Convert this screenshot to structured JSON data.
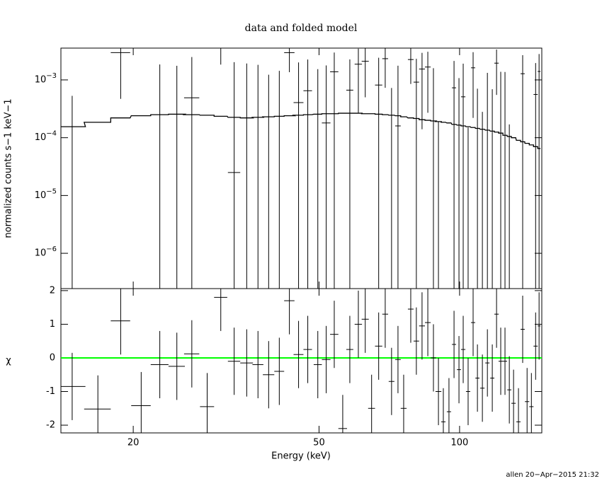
{
  "chart_data": [
    {
      "type": "errorbar",
      "title": "data and folded model",
      "ylabel": "normalized counts s−1 keV−1",
      "xlog": true,
      "ylog": true,
      "xlim": [
        14,
        150
      ],
      "ylim": [
        2.45e-07,
        0.00355
      ],
      "yticks": [
        {
          "value": 1e-06,
          "label": "10−6"
        },
        {
          "value": 1e-05,
          "label": "10−5"
        },
        {
          "value": 0.0001,
          "label": "10−4"
        },
        {
          "value": 0.001,
          "label": "10−3"
        }
      ],
      "x": [
        14.8,
        16.8,
        18.8,
        20.8,
        22.8,
        24.8,
        26.7,
        28.8,
        30.8,
        32.9,
        35.0,
        37.0,
        39.0,
        41.1,
        43.2,
        45.2,
        47.3,
        49.7,
        51.8,
        53.9,
        56.2,
        58.2,
        60.7,
        62.8,
        64.8,
        67.1,
        69.3,
        71.5,
        73.8,
        75.9,
        78.6,
        80.8,
        83.1,
        85.5,
        87.9,
        90.1,
        92.3,
        94.9,
        97.3,
        99.7,
        101.8,
        104.3,
        106.9,
        109.2,
        111.9,
        114.7,
        117.5,
        120.0,
        122.5,
        125.1,
        127.8,
        130.5,
        133.7,
        136.5,
        139.5,
        142.5,
        145.5,
        148.0
      ],
      "xerr": [
        1.0,
        1.1,
        0.9,
        1.0,
        1.0,
        1.0,
        1.0,
        1.0,
        1.0,
        1.0,
        1.1,
        1.0,
        1.1,
        1.0,
        1.1,
        1.1,
        1.0,
        1.0,
        1.1,
        1.1,
        1.2,
        1.0,
        1.1,
        1.1,
        1.1,
        1.2,
        1.0,
        1.0,
        1.0,
        1.1,
        1.1,
        1.1,
        1.2,
        1.2,
        1.2,
        1.3,
        1.0,
        1.0,
        1.0,
        1.0,
        1.1,
        1.1,
        1.1,
        1.1,
        1.2,
        1.2,
        1.2,
        1.3,
        1.3,
        1.3,
        1.3,
        1.4,
        1.4,
        1.4,
        1.5,
        1.5,
        1.5,
        1.0
      ],
      "series": [
        {
          "color": "#000000",
          "values": [
            -0.00197,
            -0.00362,
            0.00297,
            -0.00331,
            -0.00015,
            -0.000245,
            0.00049,
            -0.00266,
            0.00384,
            2.5e-05,
            -8e-05,
            -0.000175,
            -0.00077,
            -0.000565,
            0.00296,
            0.000405,
            0.00065,
            -6.5e-05,
            0.00018,
            0.00138,
            -0.0031,
            0.000665,
            0.00187,
            0.0021,
            -0.00214,
            0.000815,
            0.00233,
            -0.000875,
            0.00016,
            -0.00217,
            0.00225,
            0.000915,
            0.00154,
            0.00167,
            0.000195,
            -0.00121,
            -0.00248,
            -0.00206,
            0.00073,
            -0.000325,
            0.00051,
            -0.00125,
            0.00162,
            -0.000695,
            -0.00112,
            -7.5e-05,
            -0.00071,
            0.00195,
            -2e-05,
            -3e-05,
            -0.00123,
            -0.00179,
            -0.00257,
            0.00128,
            -0.00174,
            -0.00196,
            0.00056,
            0.0014
          ],
          "errors": [
            0.0025,
            0.0025,
            0.0025,
            0.0025,
            0.002,
            0.002,
            0.002,
            0.002,
            0.002,
            0.002,
            0.002,
            0.002,
            0.002,
            0.002,
            0.0016,
            0.0016,
            0.0016,
            0.0016,
            0.0016,
            0.0016,
            0.0016,
            0.0016,
            0.0016,
            0.0016,
            0.0016,
            0.0016,
            0.0016,
            0.0016,
            0.0016,
            0.0016,
            0.0014,
            0.0014,
            0.0014,
            0.0014,
            0.0014,
            0.0014,
            0.0014,
            0.0014,
            0.0014,
            0.0014,
            0.0014,
            0.0014,
            0.0014,
            0.0014,
            0.0014,
            0.0014,
            0.0014,
            0.0014,
            0.0014,
            0.0014,
            0.0014,
            0.0014,
            0.0014,
            0.0014,
            0.0014,
            0.0014,
            0.0014,
            0.0014
          ]
        }
      ],
      "model": {
        "color": "#000000",
        "values": [
          0.000155,
          0.000185,
          0.00022,
          0.00024,
          0.00025,
          0.000255,
          0.00025,
          0.000245,
          0.000235,
          0.000225,
          0.00022,
          0.000225,
          0.00023,
          0.000235,
          0.00024,
          0.000245,
          0.00025,
          0.000255,
          0.00026,
          0.00026,
          0.000265,
          0.000265,
          0.000265,
          0.00026,
          0.00026,
          0.000255,
          0.00025,
          0.000245,
          0.00024,
          0.00023,
          0.00022,
          0.000215,
          0.000205,
          0.0002,
          0.000195,
          0.00019,
          0.000185,
          0.00018,
          0.00017,
          0.000165,
          0.00016,
          0.000155,
          0.00015,
          0.000145,
          0.00014,
          0.000135,
          0.00013,
          0.000125,
          0.00012,
          0.00011,
          0.000105,
          0.0001,
          9e-05,
          8.5e-05,
          8e-05,
          7.5e-05,
          7e-05,
          6.5e-05
        ]
      }
    },
    {
      "type": "errorbar",
      "xlabel": "Energy (keV)",
      "ylabel": "χ",
      "xlog": true,
      "xlim": [
        14,
        150
      ],
      "xticks": [
        20,
        50,
        100
      ],
      "ylim": [
        -2.23,
        2.06
      ],
      "yticks": [
        -2,
        -1,
        0,
        1,
        2
      ],
      "x": [
        14.8,
        16.8,
        18.8,
        20.8,
        22.8,
        24.8,
        26.7,
        28.8,
        30.8,
        32.9,
        35.0,
        37.0,
        39.0,
        41.1,
        43.2,
        45.2,
        47.3,
        49.7,
        51.8,
        53.9,
        56.2,
        58.2,
        60.7,
        62.8,
        64.8,
        67.1,
        69.3,
        71.5,
        73.8,
        75.9,
        78.6,
        80.8,
        83.1,
        85.5,
        87.9,
        90.1,
        92.3,
        94.9,
        97.3,
        99.7,
        101.8,
        104.3,
        106.9,
        109.2,
        111.9,
        114.7,
        117.5,
        120.0,
        122.5,
        125.1,
        127.8,
        130.5,
        133.7,
        136.5,
        139.5,
        142.5,
        145.5,
        148.0
      ],
      "xerr": [
        1.0,
        1.1,
        0.9,
        1.0,
        1.0,
        1.0,
        1.0,
        1.0,
        1.0,
        1.0,
        1.1,
        1.0,
        1.1,
        1.0,
        1.1,
        1.1,
        1.0,
        1.0,
        1.1,
        1.1,
        1.2,
        1.0,
        1.1,
        1.1,
        1.1,
        1.2,
        1.0,
        1.0,
        1.0,
        1.1,
        1.1,
        1.1,
        1.2,
        1.2,
        1.2,
        1.3,
        1.0,
        1.0,
        1.0,
        1.0,
        1.1,
        1.1,
        1.1,
        1.1,
        1.2,
        1.2,
        1.2,
        1.3,
        1.3,
        1.3,
        1.3,
        1.4,
        1.4,
        1.4,
        1.5,
        1.5,
        1.5,
        1.0
      ],
      "series": [
        {
          "color": "#000000",
          "values": [
            -0.85,
            -1.52,
            1.1,
            -1.42,
            -0.2,
            -0.25,
            0.12,
            -1.45,
            1.8,
            -0.1,
            -0.15,
            -0.2,
            -0.5,
            -0.4,
            1.7,
            0.1,
            0.25,
            -0.2,
            -0.05,
            0.7,
            -2.1,
            0.25,
            1.0,
            1.15,
            -1.5,
            0.35,
            1.3,
            -0.7,
            -0.05,
            -1.5,
            1.45,
            0.5,
            0.95,
            1.05,
            0.0,
            -1.0,
            -1.9,
            -1.6,
            0.4,
            -0.35,
            0.25,
            -1.0,
            1.05,
            -0.6,
            -0.9,
            -0.15,
            -0.6,
            1.3,
            -0.1,
            -0.1,
            -0.95,
            -1.35,
            -1.9,
            0.85,
            -1.3,
            -1.45,
            0.35,
            0.95
          ],
          "errors": [
            1,
            1,
            1,
            1,
            1,
            1,
            1,
            1,
            1,
            1,
            1,
            1,
            1,
            1,
            1,
            1,
            1,
            1,
            1,
            1,
            1,
            1,
            1,
            1,
            1,
            1,
            1,
            1,
            1,
            1,
            1,
            1,
            1,
            1,
            1,
            1,
            1,
            1,
            1,
            1,
            1,
            1,
            1,
            1,
            1,
            1,
            1,
            1,
            1,
            1,
            1,
            1,
            1,
            1,
            1,
            1,
            1,
            1
          ]
        }
      ],
      "zero_line": {
        "value": 0,
        "color": "#00ff00"
      }
    }
  ],
  "footer": "allen 20−Apr−2015 21:32"
}
